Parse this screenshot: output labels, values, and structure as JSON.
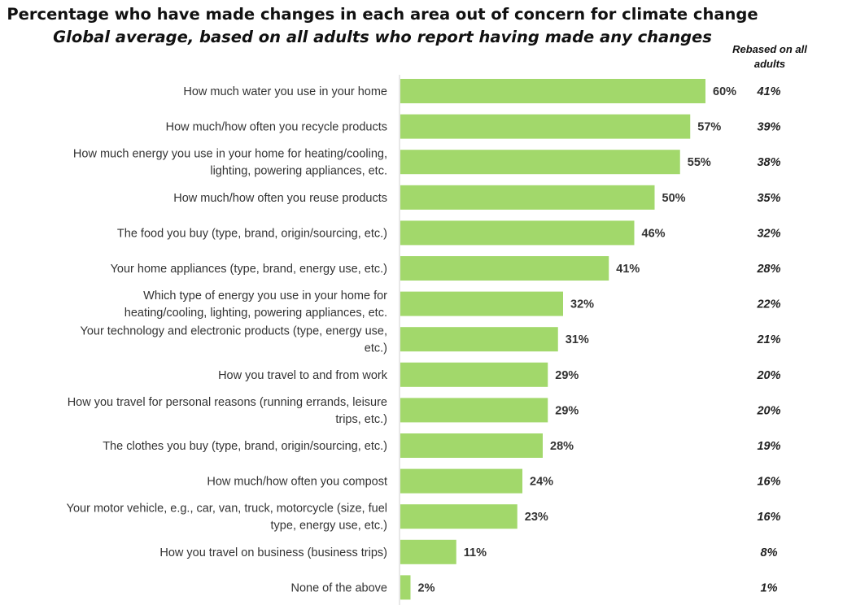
{
  "header": {
    "title": "Percentage who have made changes in each area out of concern for climate change",
    "subtitle": "Global average, based on all adults who report having made any changes",
    "rebased_header": "Rebased on all adults"
  },
  "chart_data": {
    "type": "bar",
    "orientation": "horizontal",
    "title": "Percentage who have made changes in each area out of concern for climate change",
    "subtitle": "Global average, based on all adults who report having made any changes",
    "xlabel": "",
    "ylabel": "",
    "xlim": [
      0,
      60
    ],
    "grid": false,
    "legend": "none",
    "bar_color": "#a2d86b",
    "categories": [
      [
        "How much water you use in your home"
      ],
      [
        "How much/how often you recycle products"
      ],
      [
        "How much energy you use in your home for heating/cooling,",
        "lighting, powering appliances, etc."
      ],
      [
        "How much/how often you reuse products"
      ],
      [
        "The food you buy (type, brand, origin/sourcing, etc.)"
      ],
      [
        "Your home appliances (type, brand, energy use, etc.)"
      ],
      [
        "Which type of energy you use in your home for",
        "heating/cooling, lighting, powering appliances, etc."
      ],
      [
        "Your technology and electronic products (type, energy use,",
        "etc.)"
      ],
      [
        "How you travel to and from work"
      ],
      [
        "How you travel for personal reasons (running errands, leisure",
        "trips, etc.)"
      ],
      [
        "The clothes you buy (type, brand, origin/sourcing, etc.)"
      ],
      [
        "How much/how often you compost"
      ],
      [
        "Your motor vehicle, e.g., car, van, truck, motorcycle (size, fuel",
        "type, energy use, etc.)"
      ],
      [
        "How you travel on business (business trips)"
      ],
      [
        "None of the above"
      ]
    ],
    "values": [
      60,
      57,
      55,
      50,
      46,
      41,
      32,
      31,
      29,
      29,
      28,
      24,
      23,
      11,
      2
    ],
    "value_labels": [
      "60%",
      "57%",
      "55%",
      "50%",
      "46%",
      "41%",
      "32%",
      "31%",
      "29%",
      "29%",
      "28%",
      "24%",
      "23%",
      "11%",
      "2%"
    ],
    "rebased_values": [
      41,
      39,
      38,
      35,
      32,
      28,
      22,
      21,
      20,
      20,
      19,
      16,
      16,
      8,
      1
    ],
    "rebased_labels": [
      "41%",
      "39%",
      "38%",
      "35%",
      "32%",
      "28%",
      "22%",
      "21%",
      "20%",
      "20%",
      "19%",
      "16%",
      "16%",
      "8%",
      "1%"
    ]
  }
}
